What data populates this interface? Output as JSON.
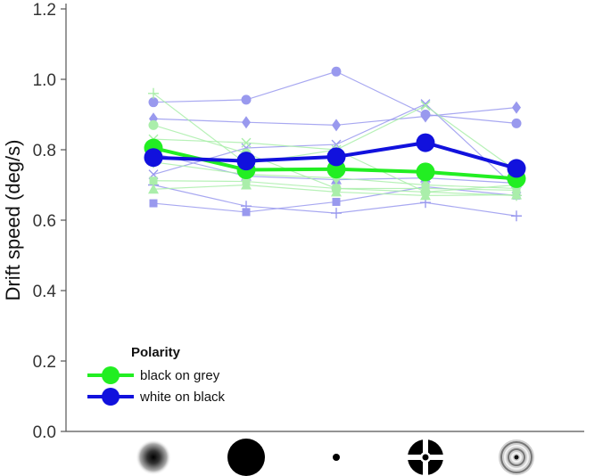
{
  "chart_data": {
    "type": "line",
    "title": "",
    "xlabel": "",
    "ylabel": "Drift speed (deg/s)",
    "ylim": [
      0.0,
      1.2
    ],
    "yticks": [
      "0.0",
      "0.2",
      "0.4",
      "0.6",
      "0.8",
      "1.0",
      "1.2"
    ],
    "grid": false,
    "x_categories": [
      "blurred-disc-icon",
      "large-black-disc-icon",
      "small-dot-icon",
      "crosshair-target-icon",
      "concentric-rings-icon"
    ],
    "legend": {
      "title": "Polarity",
      "position": "bottom-left",
      "entries": [
        {
          "label": "black on grey",
          "color": "#22ee22"
        },
        {
          "label": "white on black",
          "color": "#1111dd"
        }
      ]
    },
    "series": [
      {
        "label": "black on grey",
        "color": "#22ee22",
        "values": [
          0.805,
          0.743,
          0.745,
          0.737,
          0.718
        ]
      },
      {
        "label": "white on black",
        "color": "#1111dd",
        "values": [
          0.778,
          0.768,
          0.78,
          0.82,
          0.747
        ]
      }
    ],
    "individual_series": [
      {
        "group": "white on black",
        "color": "#9999ee",
        "marker": "circle",
        "values": [
          0.935,
          0.942,
          1.022,
          0.9,
          0.875
        ]
      },
      {
        "group": "white on black",
        "color": "#9999ee",
        "marker": "diamond",
        "values": [
          0.888,
          0.878,
          0.87,
          0.895,
          0.92
        ]
      },
      {
        "group": "white on black",
        "color": "#9999ee",
        "marker": "square",
        "values": [
          0.648,
          0.623,
          0.652,
          0.695,
          0.67
        ]
      },
      {
        "group": "white on black",
        "color": "#9999ee",
        "marker": "plus",
        "values": [
          0.7,
          0.64,
          0.62,
          0.65,
          0.612
        ]
      },
      {
        "group": "white on black",
        "color": "#9999ee",
        "marker": "cross",
        "values": [
          0.73,
          0.805,
          0.815,
          0.93,
          0.69
        ]
      },
      {
        "group": "white on black",
        "color": "#9999ee",
        "marker": "triangle",
        "values": [
          0.79,
          0.725,
          0.715,
          0.72,
          0.705
        ]
      },
      {
        "group": "black on grey",
        "color": "#aaeeaa",
        "marker": "circle",
        "values": [
          0.87,
          0.79,
          0.69,
          0.68,
          0.7
        ]
      },
      {
        "group": "black on grey",
        "color": "#aaeeaa",
        "marker": "diamond",
        "values": [
          0.765,
          0.73,
          0.72,
          0.7,
          0.69
        ]
      },
      {
        "group": "black on grey",
        "color": "#aaeeaa",
        "marker": "square",
        "values": [
          0.712,
          0.71,
          0.69,
          0.69,
          0.685
        ]
      },
      {
        "group": "black on grey",
        "color": "#aaeeaa",
        "marker": "plus",
        "values": [
          0.96,
          0.76,
          0.8,
          0.68,
          0.67
        ]
      },
      {
        "group": "black on grey",
        "color": "#aaeeaa",
        "marker": "cross",
        "values": [
          0.83,
          0.82,
          0.8,
          0.925,
          0.74
        ]
      },
      {
        "group": "black on grey",
        "color": "#aaeeaa",
        "marker": "triangle",
        "values": [
          0.688,
          0.7,
          0.68,
          0.67,
          0.672
        ]
      }
    ]
  }
}
